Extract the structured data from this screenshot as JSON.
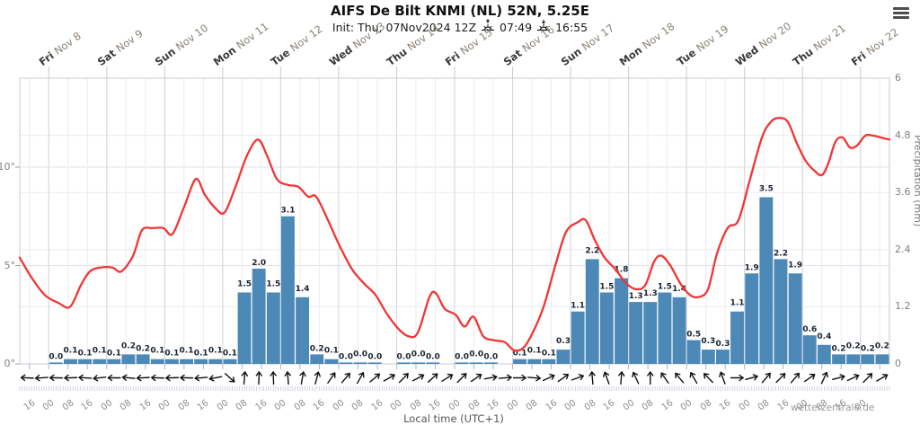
{
  "header": {
    "title": "AIFS De Bilt KNMI (NL) 52N, 5.25E",
    "init_label": "Init: Thu, 07Nov2024 12Z",
    "sunrise_time": "07:49",
    "sunset_time": "16:55"
  },
  "menu_icon": "hamburger-menu",
  "watermark": "wetterzentrale.de",
  "x_axis_title": "Local time (UTC+1)",
  "days": [
    {
      "day": "Fri",
      "date": "Nov 8"
    },
    {
      "day": "Sat",
      "date": "Nov 9"
    },
    {
      "day": "Sun",
      "date": "Nov 10"
    },
    {
      "day": "Mon",
      "date": "Nov 11"
    },
    {
      "day": "Tue",
      "date": "Nov 12"
    },
    {
      "day": "Wed",
      "date": "Nov 13"
    },
    {
      "day": "Thu",
      "date": "Nov 14"
    },
    {
      "day": "Fri",
      "date": "Nov 15"
    },
    {
      "day": "Sat",
      "date": "Nov 16"
    },
    {
      "day": "Sun",
      "date": "Nov 17"
    },
    {
      "day": "Mon",
      "date": "Nov 18"
    },
    {
      "day": "Tue",
      "date": "Nov 19"
    },
    {
      "day": "Wed",
      "date": "Nov 20"
    },
    {
      "day": "Thu",
      "date": "Nov 21"
    },
    {
      "day": "Fri",
      "date": "Nov 22"
    }
  ],
  "time_labels": [
    "16",
    "00",
    "08",
    "16",
    "00",
    "08",
    "16",
    "00",
    "08",
    "16",
    "00",
    "08",
    "16",
    "00",
    "08",
    "16",
    "00",
    "08",
    "16",
    "00",
    "08",
    "16",
    "00",
    "08",
    "16",
    "00",
    "08",
    "16",
    "00",
    "08",
    "16",
    "00",
    "08",
    "16",
    "00",
    "08",
    "16",
    "00",
    "08",
    "16",
    "00",
    "08",
    "16",
    "00"
  ],
  "left_axis": {
    "ticks": [
      {
        "label": "10°",
        "value": 10
      },
      {
        "label": "5°",
        "value": 5
      },
      {
        "label": "0°",
        "value": 0
      }
    ]
  },
  "right_axis": {
    "title": "Precipitation (mm)",
    "ticks": [
      {
        "label": "6",
        "value": 6
      },
      {
        "label": "4.8",
        "value": 4.8
      },
      {
        "label": "3.6",
        "value": 3.6
      },
      {
        "label": "2.4",
        "value": 2.4
      },
      {
        "label": "1.2",
        "value": 1.2
      },
      {
        "label": "0",
        "value": 0
      }
    ]
  },
  "colors": {
    "temperature": "#f23535",
    "precipitation": "#4d89b7",
    "bar_label": "#1b2430",
    "grid_light": "#ececf2",
    "grid_day": "#d4d4de",
    "border": "#c9c9d3",
    "arrow": "#111111"
  },
  "chart_data": {
    "type": "mixed",
    "title": "AIFS De Bilt KNMI (NL) 52N, 5.25E",
    "x_unit": "hours since Thu 07Nov2024 12:00 local (UTC+1)",
    "x_range_hours": [
      0,
      360
    ],
    "temp_axis_range_c": [
      0,
      14.5
    ],
    "precip_axis_range_mm": [
      0,
      6
    ],
    "grid": true,
    "series": [
      {
        "name": "2m temperature (C)",
        "type": "line",
        "color": "#f23535",
        "points": [
          [
            0,
            5.4
          ],
          [
            4.8,
            4.4
          ],
          [
            10.4,
            3.5
          ],
          [
            16,
            3.1
          ],
          [
            20.8,
            2.9
          ],
          [
            25.3,
            4.0
          ],
          [
            29,
            4.7
          ],
          [
            33.5,
            4.9
          ],
          [
            38.3,
            4.9
          ],
          [
            42,
            4.7
          ],
          [
            46.9,
            5.5
          ],
          [
            50.6,
            6.8
          ],
          [
            55,
            6.9
          ],
          [
            59.5,
            6.9
          ],
          [
            63.2,
            6.6
          ],
          [
            68.1,
            8.0
          ],
          [
            72.9,
            9.4
          ],
          [
            76.6,
            8.6
          ],
          [
            81.1,
            7.9
          ],
          [
            84.8,
            7.7
          ],
          [
            89.3,
            9.0
          ],
          [
            94.1,
            10.6
          ],
          [
            98.6,
            11.4
          ],
          [
            102.3,
            10.6
          ],
          [
            106.4,
            9.4
          ],
          [
            110.8,
            9.1
          ],
          [
            115.3,
            9.0
          ],
          [
            119.4,
            8.5
          ],
          [
            122.7,
            8.5
          ],
          [
            127.6,
            7.3
          ],
          [
            132.4,
            6.0
          ],
          [
            137.6,
            4.8
          ],
          [
            142.4,
            4.1
          ],
          [
            147.3,
            3.5
          ],
          [
            151.7,
            2.6
          ],
          [
            156.6,
            1.8
          ],
          [
            161,
            1.4
          ],
          [
            164.8,
            1.6
          ],
          [
            169.6,
            3.4
          ],
          [
            172.2,
            3.6
          ],
          [
            175.9,
            2.8
          ],
          [
            180.4,
            2.5
          ],
          [
            184.1,
            1.9
          ],
          [
            187.8,
            2.4
          ],
          [
            191.9,
            1.4
          ],
          [
            196.4,
            1.2
          ],
          [
            200.8,
            1.1
          ],
          [
            204.5,
            0.7
          ],
          [
            208.3,
            0.8
          ],
          [
            212,
            1.5
          ],
          [
            216.8,
            2.9
          ],
          [
            221.7,
            5.0
          ],
          [
            226.1,
            6.7
          ],
          [
            231,
            7.2
          ],
          [
            234.3,
            7.3
          ],
          [
            238,
            6.3
          ],
          [
            242.1,
            5.4
          ],
          [
            246.6,
            4.8
          ],
          [
            251,
            4.1
          ],
          [
            255.1,
            3.8
          ],
          [
            258.9,
            4.0
          ],
          [
            262.6,
            5.2
          ],
          [
            265.6,
            5.5
          ],
          [
            269.3,
            5.0
          ],
          [
            273.4,
            4.1
          ],
          [
            277.5,
            3.5
          ],
          [
            281.2,
            3.4
          ],
          [
            284.9,
            3.8
          ],
          [
            288.6,
            5.6
          ],
          [
            293,
            6.9
          ],
          [
            297.5,
            7.3
          ],
          [
            302.3,
            9.4
          ],
          [
            307.2,
            11.5
          ],
          [
            310.9,
            12.3
          ],
          [
            314.2,
            12.5
          ],
          [
            317.9,
            12.3
          ],
          [
            321.7,
            11.2
          ],
          [
            325.4,
            10.3
          ],
          [
            329.1,
            9.8
          ],
          [
            332.1,
            9.6
          ],
          [
            334.7,
            10.2
          ],
          [
            337.7,
            11.3
          ],
          [
            340.7,
            11.5
          ],
          [
            343.6,
            11.0
          ],
          [
            346.6,
            11.1
          ],
          [
            350,
            11.6
          ],
          [
            353.3,
            11.6
          ],
          [
            356.7,
            11.5
          ],
          [
            360,
            11.4
          ]
        ]
      },
      {
        "name": "6h precipitation (mm)",
        "type": "bar",
        "color": "#4d89b7",
        "slot_hours": 6,
        "values": [
          null,
          null,
          0,
          0.1,
          0.1,
          0.1,
          0.1,
          0.2,
          0.2,
          0.1,
          0.1,
          0.1,
          0.1,
          0.1,
          0.1,
          1.5,
          2.0,
          1.5,
          3.1,
          1.4,
          0.2,
          0.1,
          0,
          0,
          0,
          null,
          0,
          0,
          0,
          null,
          0,
          0,
          0,
          null,
          0.1,
          0.1,
          0.1,
          0.3,
          1.1,
          2.2,
          1.5,
          1.8,
          1.3,
          1.3,
          1.5,
          1.4,
          0.5,
          0.3,
          0.3,
          1.1,
          1.9,
          3.5,
          2.2,
          1.9,
          0.6,
          0.4,
          0.2,
          0.2,
          0.2,
          0.2
        ]
      }
    ],
    "wind_arrows": {
      "name": "wind direction",
      "slot_hours": 6,
      "angles_deg_screen": [
        183,
        176,
        181,
        178,
        184,
        173,
        180,
        186,
        177,
        182,
        178,
        181,
        175,
        169,
        42,
        -85,
        -88,
        -92,
        -95,
        -80,
        -75,
        -55,
        -50,
        -60,
        -40,
        -30,
        -45,
        -28,
        -42,
        -32,
        -45,
        -35,
        -10,
        -5,
        0,
        5,
        -25,
        -35,
        -20,
        -95,
        -110,
        -85,
        -115,
        -90,
        -125,
        -130,
        -120,
        -135,
        -110,
        0,
        -15,
        -50,
        -45,
        -50,
        -35,
        -65,
        -15,
        -25,
        -45,
        -30
      ]
    },
    "legend_position": "none"
  }
}
